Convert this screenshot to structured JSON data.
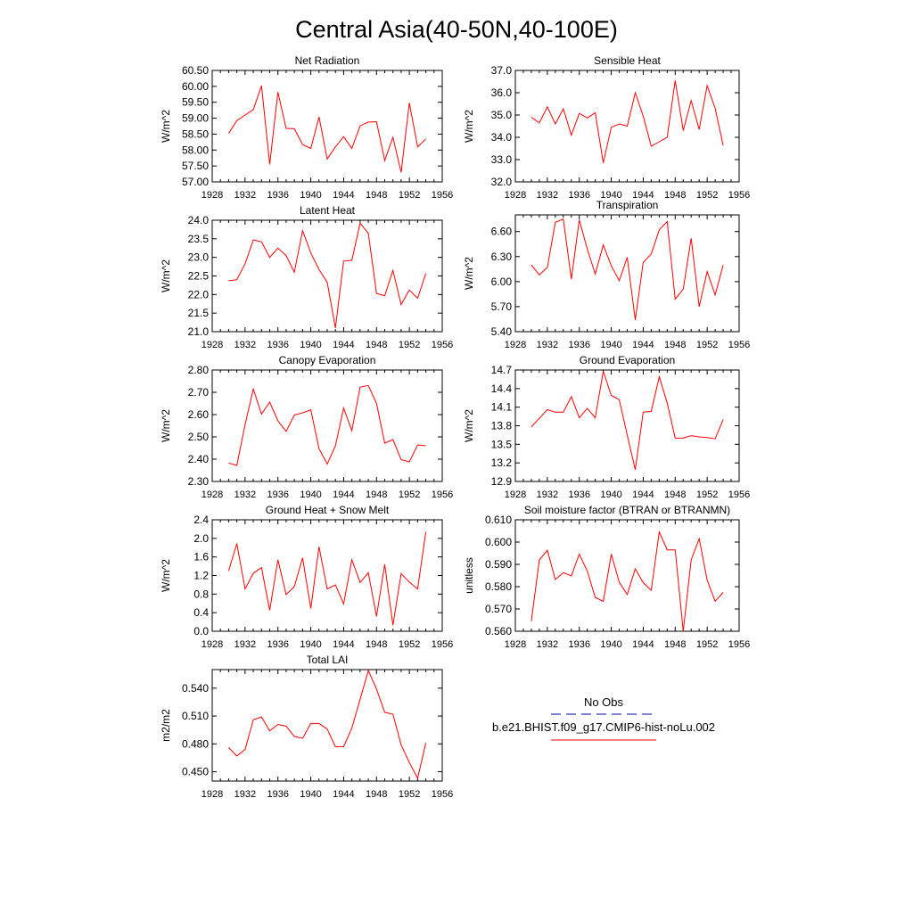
{
  "page_title": "Central Asia(40-50N,40-100E)",
  "chart_data": [
    {
      "type": "line",
      "title": "Net Radiation",
      "ylabel": "W/m^2",
      "xlim": [
        1928,
        1956
      ],
      "ylim": [
        57.0,
        60.5
      ],
      "xticks": [
        "1928",
        "1932",
        "1936",
        "1940",
        "1944",
        "1948",
        "1952",
        "1956"
      ],
      "yticks": [
        "57.00",
        "57.50",
        "58.00",
        "58.50",
        "59.00",
        "59.50",
        "60.00",
        "60.50"
      ],
      "x": [
        1930,
        1931,
        1932,
        1933,
        1934,
        1935,
        1936,
        1937,
        1938,
        1939,
        1940,
        1941,
        1942,
        1943,
        1944,
        1945,
        1946,
        1947,
        1948,
        1949,
        1950,
        1951,
        1952,
        1953,
        1954
      ],
      "values": [
        58.52,
        58.92,
        59.1,
        59.27,
        60.02,
        57.55,
        59.82,
        58.68,
        58.67,
        58.17,
        58.05,
        59.04,
        57.72,
        58.1,
        58.42,
        58.05,
        58.76,
        58.88,
        58.89,
        57.67,
        58.4,
        57.3,
        59.48,
        58.1,
        58.35
      ]
    },
    {
      "type": "line",
      "title": "Sensible Heat",
      "ylabel": "W/m^2",
      "xlim": [
        1928,
        1956
      ],
      "ylim": [
        32.0,
        37.0
      ],
      "xticks": [
        "1928",
        "1932",
        "1936",
        "1940",
        "1944",
        "1948",
        "1952",
        "1956"
      ],
      "yticks": [
        "32.0",
        "33.0",
        "34.0",
        "35.0",
        "36.0",
        "37.0"
      ],
      "x": [
        1930,
        1931,
        1932,
        1933,
        1934,
        1935,
        1936,
        1937,
        1938,
        1939,
        1940,
        1941,
        1942,
        1943,
        1944,
        1945,
        1946,
        1947,
        1948,
        1949,
        1950,
        1951,
        1952,
        1953,
        1954
      ],
      "values": [
        34.9,
        34.65,
        35.37,
        34.6,
        35.28,
        34.1,
        35.07,
        34.87,
        35.1,
        32.85,
        34.45,
        34.6,
        34.5,
        36.0,
        34.95,
        33.6,
        33.8,
        34.0,
        36.55,
        34.3,
        35.65,
        34.35,
        36.32,
        35.3,
        33.63
      ]
    },
    {
      "type": "line",
      "title": "Latent Heat",
      "ylabel": "W/m^2",
      "xlim": [
        1928,
        1956
      ],
      "ylim": [
        21.0,
        24.0
      ],
      "xticks": [
        "1928",
        "1932",
        "1936",
        "1940",
        "1944",
        "1948",
        "1952",
        "1956"
      ],
      "yticks": [
        "21.0",
        "21.5",
        "22.0",
        "22.5",
        "23.0",
        "23.5",
        "24.0"
      ],
      "x": [
        1930,
        1931,
        1932,
        1933,
        1934,
        1935,
        1936,
        1937,
        1938,
        1939,
        1940,
        1941,
        1942,
        1943,
        1944,
        1945,
        1946,
        1947,
        1948,
        1949,
        1950,
        1951,
        1952,
        1953,
        1954
      ],
      "values": [
        22.37,
        22.4,
        22.83,
        23.47,
        23.42,
        23.0,
        23.25,
        23.05,
        22.6,
        23.72,
        23.12,
        22.67,
        22.33,
        21.1,
        22.9,
        22.92,
        23.92,
        23.65,
        22.03,
        21.97,
        22.65,
        21.73,
        22.12,
        21.9,
        22.57
      ]
    },
    {
      "type": "line",
      "title": "Transpiration",
      "ylabel": "W/m^2",
      "xlim": [
        1928,
        1956
      ],
      "ylim": [
        5.4,
        6.8
      ],
      "xticks": [
        "1928",
        "1932",
        "1936",
        "1940",
        "1944",
        "1948",
        "1952",
        "1956"
      ],
      "yticks": [
        "5.40",
        "5.70",
        "6.00",
        "6.30",
        "6.60"
      ],
      "x": [
        1930,
        1931,
        1932,
        1933,
        1934,
        1935,
        1936,
        1937,
        1938,
        1939,
        1940,
        1941,
        1942,
        1943,
        1944,
        1945,
        1946,
        1947,
        1948,
        1949,
        1950,
        1951,
        1952,
        1953,
        1954
      ],
      "values": [
        6.2,
        6.08,
        6.17,
        6.71,
        6.75,
        6.03,
        6.74,
        6.39,
        6.09,
        6.44,
        6.19,
        6.01,
        6.29,
        5.54,
        6.23,
        6.33,
        6.62,
        6.72,
        5.79,
        5.91,
        6.52,
        5.7,
        6.12,
        5.84,
        6.2
      ]
    },
    {
      "type": "line",
      "title": "Canopy Evaporation",
      "ylabel": "W/m^2",
      "xlim": [
        1928,
        1956
      ],
      "ylim": [
        2.3,
        2.8
      ],
      "xticks": [
        "1928",
        "1932",
        "1936",
        "1940",
        "1944",
        "1948",
        "1952",
        "1956"
      ],
      "yticks": [
        "2.30",
        "2.40",
        "2.50",
        "2.60",
        "2.70",
        "2.80"
      ],
      "x": [
        1930,
        1931,
        1932,
        1933,
        1934,
        1935,
        1936,
        1937,
        1938,
        1939,
        1940,
        1941,
        1942,
        1943,
        1944,
        1945,
        1946,
        1947,
        1948,
        1949,
        1950,
        1951,
        1952,
        1953,
        1954
      ],
      "values": [
        2.383,
        2.372,
        2.555,
        2.715,
        2.602,
        2.656,
        2.572,
        2.525,
        2.598,
        2.608,
        2.621,
        2.447,
        2.378,
        2.46,
        2.629,
        2.528,
        2.723,
        2.731,
        2.65,
        2.472,
        2.488,
        2.398,
        2.388,
        2.464,
        2.46
      ]
    },
    {
      "type": "line",
      "title": "Ground Evaporation",
      "ylabel": "W/m^2",
      "xlim": [
        1928,
        1956
      ],
      "ylim": [
        12.9,
        14.7
      ],
      "xticks": [
        "1928",
        "1932",
        "1936",
        "1940",
        "1944",
        "1948",
        "1952",
        "1956"
      ],
      "yticks": [
        "12.9",
        "13.2",
        "13.5",
        "13.8",
        "14.1",
        "14.4",
        "14.7"
      ],
      "x": [
        1930,
        1931,
        1932,
        1933,
        1934,
        1935,
        1936,
        1937,
        1938,
        1939,
        1940,
        1941,
        1942,
        1943,
        1944,
        1945,
        1946,
        1947,
        1948,
        1949,
        1950,
        1951,
        1952,
        1953,
        1954
      ],
      "values": [
        13.78,
        13.92,
        14.06,
        14.02,
        14.02,
        14.27,
        13.93,
        14.08,
        13.93,
        14.68,
        14.29,
        14.22,
        13.65,
        13.09,
        14.02,
        14.03,
        14.59,
        14.17,
        13.6,
        13.6,
        13.64,
        13.62,
        13.61,
        13.59,
        13.9
      ]
    },
    {
      "type": "line",
      "title": "Ground Heat + Snow Melt",
      "ylabel": "W/m^2",
      "xlim": [
        1928,
        1956
      ],
      "ylim": [
        0.0,
        2.4
      ],
      "xticks": [
        "1928",
        "1932",
        "1936",
        "1940",
        "1944",
        "1948",
        "1952",
        "1956"
      ],
      "yticks": [
        "0.0",
        "0.4",
        "0.8",
        "1.2",
        "1.6",
        "2.0",
        "2.4"
      ],
      "x": [
        1930,
        1931,
        1932,
        1933,
        1934,
        1935,
        1936,
        1937,
        1938,
        1939,
        1940,
        1941,
        1942,
        1943,
        1944,
        1945,
        1946,
        1947,
        1948,
        1949,
        1950,
        1951,
        1952,
        1953,
        1954
      ],
      "values": [
        1.3,
        1.89,
        0.91,
        1.25,
        1.37,
        0.45,
        1.54,
        0.79,
        0.96,
        1.58,
        0.49,
        1.82,
        0.91,
        1.0,
        0.59,
        1.54,
        1.05,
        1.26,
        0.32,
        1.44,
        0.13,
        1.24,
        1.06,
        0.91,
        2.14
      ]
    },
    {
      "type": "line",
      "title": "Soil moisture factor (BTRAN or BTRANMN)",
      "ylabel": "unitless",
      "xlim": [
        1928,
        1956
      ],
      "ylim": [
        0.56,
        0.61
      ],
      "xticks": [
        "1928",
        "1932",
        "1936",
        "1940",
        "1944",
        "1948",
        "1952",
        "1956"
      ],
      "yticks": [
        "0.560",
        "0.570",
        "0.580",
        "0.590",
        "0.600",
        "0.610"
      ],
      "x": [
        1930,
        1931,
        1932,
        1933,
        1934,
        1935,
        1936,
        1937,
        1938,
        1939,
        1940,
        1941,
        1942,
        1943,
        1944,
        1945,
        1946,
        1947,
        1948,
        1949,
        1950,
        1951,
        1952,
        1953,
        1954
      ],
      "values": [
        0.5645,
        0.592,
        0.5963,
        0.5832,
        0.5863,
        0.5848,
        0.5946,
        0.587,
        0.5752,
        0.5734,
        0.5946,
        0.582,
        0.5765,
        0.588,
        0.5818,
        0.5784,
        0.6045,
        0.5965,
        0.5965,
        0.56,
        0.592,
        0.6015,
        0.583,
        0.5735,
        0.5774
      ]
    },
    {
      "type": "line",
      "title": "Total LAI",
      "ylabel": "m2/m2",
      "xlim": [
        1928,
        1956
      ],
      "ylim": [
        0.44,
        0.56
      ],
      "xticks": [
        "1928",
        "1932",
        "1936",
        "1940",
        "1944",
        "1948",
        "1952",
        "1956"
      ],
      "yticks": [
        "0.450",
        "0.480",
        "0.510",
        "0.540"
      ],
      "x": [
        1930,
        1931,
        1932,
        1933,
        1934,
        1935,
        1936,
        1937,
        1938,
        1939,
        1940,
        1941,
        1942,
        1943,
        1944,
        1945,
        1946,
        1947,
        1948,
        1949,
        1950,
        1951,
        1952,
        1953,
        1954
      ],
      "values": [
        0.476,
        0.467,
        0.474,
        0.506,
        0.509,
        0.494,
        0.501,
        0.499,
        0.488,
        0.486,
        0.502,
        0.502,
        0.496,
        0.477,
        0.477,
        0.497,
        0.528,
        0.559,
        0.539,
        0.514,
        0.512,
        0.479,
        0.46,
        0.443,
        0.481
      ]
    }
  ],
  "legend": {
    "items": [
      {
        "label": "No Obs",
        "line_color": "#0000aa",
        "dash": true
      },
      {
        "label": "b.e21.BHIST.f09_g17.CMIP6-hist-noLu.002",
        "line_color": "#ff0000",
        "dash": false
      }
    ]
  },
  "colors": {
    "series": "#ff0000",
    "axis": "#000000"
  }
}
